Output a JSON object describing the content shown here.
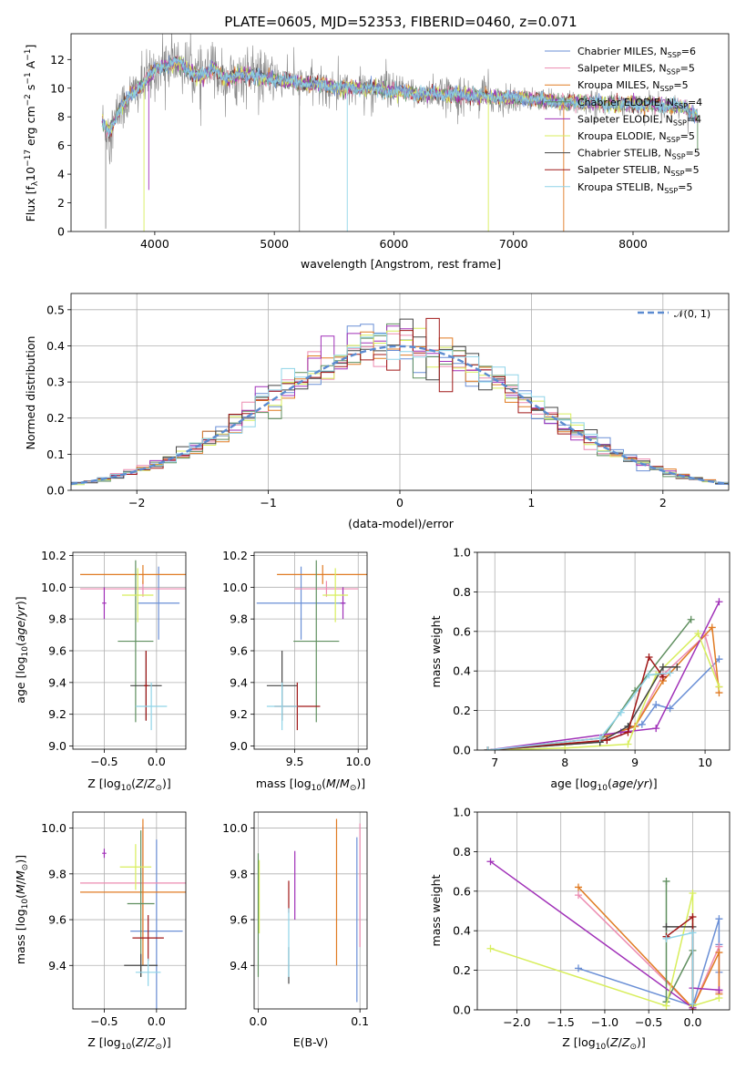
{
  "colors": {
    "Chabrier MILES": "#6a8fd6",
    "Salpeter MILES": "#ec8bb0",
    "Kroupa MILES": "#e07b23",
    "Chabrier ELODIE": "#5f8f5f",
    "Salpeter ELODIE": "#a030b8",
    "Kroupa ELODIE": "#d8ee5c",
    "Chabrier STELIB": "#444444",
    "Salpeter STELIB": "#a01818",
    "Kroupa STELIB": "#8fd4e8",
    "data": "#888888",
    "normal": "#5b8bd0",
    "grid": "#b0b0b0"
  },
  "chart_data": [
    {
      "id": "spectrum",
      "type": "line",
      "title": "PLATE=0605, MJD=52353, FIBERID=0460, z=0.071",
      "xlabel": "wavelength [Angstrom, rest frame]",
      "ylabel": "Flux [f_λ10^-17 erg cm^-2 s^-1 A^-1]",
      "xlim": [
        3300,
        8800
      ],
      "ylim": [
        0,
        13.8
      ],
      "xticks": [
        4000,
        5000,
        6000,
        7000,
        8000
      ],
      "yticks": [
        0,
        2,
        4,
        6,
        8,
        10,
        12
      ],
      "grid": false,
      "legend_position": "top-right",
      "legend": [
        {
          "name": "Chabrier MILES",
          "nssp": "6"
        },
        {
          "name": "Salpeter MILES",
          "nssp": "5"
        },
        {
          "name": "Kroupa MILES",
          "nssp": "5"
        },
        {
          "name": "Chabrier ELODIE",
          "nssp": "4"
        },
        {
          "name": "Salpeter ELODIE",
          "nssp": "4"
        },
        {
          "name": "Kroupa ELODIE",
          "nssp": "5"
        },
        {
          "name": "Chabrier STELIB",
          "nssp": "5"
        },
        {
          "name": "Salpeter STELIB",
          "nssp": "5"
        },
        {
          "name": "Kroupa STELIB",
          "nssp": "5"
        }
      ],
      "continuum_x": [
        3560,
        3620,
        3700,
        3800,
        3900,
        4000,
        4100,
        4200,
        4300,
        4400,
        4500,
        4600,
        4700,
        4800,
        4900,
        5000,
        5200,
        5400,
        5600,
        5800,
        6000,
        6200,
        6400,
        6600,
        6800,
        7000,
        7200,
        7400,
        7600,
        7800,
        8000,
        8200,
        8400,
        8540
      ],
      "continuum_y": [
        7.6,
        7.0,
        8.4,
        9.5,
        10.2,
        11.3,
        11.6,
        11.8,
        11.2,
        10.8,
        11.4,
        10.6,
        10.9,
        11.0,
        10.7,
        10.6,
        10.4,
        10.2,
        10.0,
        10.0,
        9.8,
        9.6,
        9.6,
        9.5,
        9.4,
        9.3,
        9.2,
        9.0,
        9.0,
        8.9,
        8.9,
        8.8,
        8.7,
        8.1
      ],
      "noise_amplitude": 1.3,
      "spikes": [
        {
          "x": 3910,
          "y": 0,
          "series": "Kroupa ELODIE"
        },
        {
          "x": 3950,
          "y": 2.9,
          "series": "Salpeter ELODIE"
        },
        {
          "x": 3590,
          "y": 0.2,
          "series": "data"
        },
        {
          "x": 5210,
          "y": 0,
          "series": "data"
        },
        {
          "x": 5610,
          "y": 0,
          "series": "Kroupa STELIB"
        },
        {
          "x": 6790,
          "y": 0,
          "series": "Kroupa ELODIE"
        },
        {
          "x": 7420,
          "y": 0,
          "series": "Kroupa MILES"
        },
        {
          "x": 8540,
          "y": 5.7,
          "series": "Chabrier ELODIE"
        }
      ]
    },
    {
      "id": "residuals",
      "type": "histogram",
      "xlabel": "(data-model)/error",
      "ylabel": "Normed distribution",
      "xlim": [
        -2.5,
        2.5
      ],
      "ylim": [
        0,
        0.545
      ],
      "xticks": [
        -2,
        -1,
        0,
        1,
        2
      ],
      "yticks": [
        0.0,
        0.1,
        0.2,
        0.3,
        0.4,
        0.5
      ],
      "grid": true,
      "legend_position": "top-right",
      "normal_label": "𝒩(0, 1)",
      "bin_width": 0.1
    },
    {
      "id": "age-vs-z",
      "type": "errorbar",
      "xlabel": "Z [log10(Z/Z⊙)]",
      "ylabel": "age  [log10(age/yr)]",
      "xlim": [
        -0.8,
        0.28
      ],
      "ylim": [
        8.98,
        10.22
      ],
      "xticks": [
        -0.5,
        0.0
      ],
      "yticks": [
        9.0,
        9.2,
        9.4,
        9.6,
        9.8,
        10.0,
        10.2
      ],
      "grid": true,
      "points": [
        {
          "series": "Chabrier MILES",
          "x": 0.02,
          "xerr": 0.2,
          "y": 9.9,
          "yerr": 0.23
        },
        {
          "series": "Salpeter MILES",
          "x": -0.13,
          "xerr": 0.6,
          "y": 9.99,
          "yerr": 0.05
        },
        {
          "series": "Kroupa MILES",
          "x": -0.13,
          "xerr": 0.6,
          "y": 10.08,
          "yerr": 0.06
        },
        {
          "series": "Chabrier ELODIE",
          "x": -0.2,
          "xerr": 0.17,
          "y": 9.66,
          "yerr": 0.51
        },
        {
          "series": "Salpeter ELODIE",
          "x": -0.5,
          "xerr": 0.02,
          "y": 9.9,
          "yerr": 0.1
        },
        {
          "series": "Kroupa ELODIE",
          "x": -0.18,
          "xerr": 0.15,
          "y": 9.95,
          "yerr": 0.17
        },
        {
          "series": "Chabrier STELIB",
          "x": -0.1,
          "xerr": 0.15,
          "y": 9.38,
          "yerr": 0.22
        },
        {
          "series": "Salpeter STELIB",
          "x": -0.1,
          "xerr": 0.02,
          "y": 9.38,
          "yerr": 0.22
        },
        {
          "series": "Kroupa STELIB",
          "x": -0.05,
          "xerr": 0.15,
          "y": 9.25,
          "yerr": 0.15
        }
      ]
    },
    {
      "id": "age-vs-mass",
      "type": "errorbar",
      "xlabel": "mass [log10(M/M⊙)]",
      "ylabel": "",
      "xlim": [
        9.18,
        10.07
      ],
      "ylim": [
        8.98,
        10.22
      ],
      "xticks": [
        9.5,
        10.0
      ],
      "yticks": [
        9.0,
        9.2,
        9.4,
        9.6,
        9.8,
        10.0,
        10.2
      ],
      "grid": true,
      "points": [
        {
          "series": "Chabrier MILES",
          "x": 9.55,
          "xerr": 0.35,
          "y": 9.9,
          "yerr": 0.23
        },
        {
          "series": "Salpeter MILES",
          "x": 9.75,
          "xerr": 0.25,
          "y": 9.99,
          "yerr": 0.05
        },
        {
          "series": "Kroupa MILES",
          "x": 9.72,
          "xerr": 0.36,
          "y": 10.08,
          "yerr": 0.06
        },
        {
          "series": "Chabrier ELODIE",
          "x": 9.67,
          "xerr": 0.18,
          "y": 9.66,
          "yerr": 0.51
        },
        {
          "series": "Salpeter ELODIE",
          "x": 9.88,
          "xerr": 0.02,
          "y": 9.9,
          "yerr": 0.1
        },
        {
          "series": "Kroupa ELODIE",
          "x": 9.82,
          "xerr": 0.1,
          "y": 9.95,
          "yerr": 0.17
        },
        {
          "series": "Chabrier STELIB",
          "x": 9.4,
          "xerr": 0.12,
          "y": 9.38,
          "yerr": 0.22
        },
        {
          "series": "Salpeter STELIB",
          "x": 9.52,
          "xerr": 0.18,
          "y": 9.25,
          "yerr": 0.15
        },
        {
          "series": "Kroupa STELIB",
          "x": 9.4,
          "xerr": 0.12,
          "y": 9.25,
          "yerr": 0.15
        }
      ]
    },
    {
      "id": "mass-vs-z",
      "type": "errorbar",
      "xlabel": "Z [log10(Z/Z⊙)]",
      "ylabel": "mass [log10(M/M⊙)]",
      "xlim": [
        -0.8,
        0.28
      ],
      "ylim": [
        9.21,
        10.07
      ],
      "xticks": [
        -0.5,
        0.0
      ],
      "yticks": [
        9.4,
        9.6,
        9.8,
        10.0
      ],
      "grid": true,
      "points": [
        {
          "series": "Chabrier MILES",
          "x": 0.0,
          "xerr": 0.25,
          "y": 9.55,
          "yerr": 0.4
        },
        {
          "series": "Salpeter MILES",
          "x": -0.13,
          "xerr": 0.6,
          "y": 9.76,
          "yerr": 0.25
        },
        {
          "series": "Kroupa MILES",
          "x": -0.13,
          "xerr": 0.6,
          "y": 9.72,
          "yerr": 0.32
        },
        {
          "series": "Chabrier ELODIE",
          "x": -0.15,
          "xerr": 0.13,
          "y": 9.67,
          "yerr": 0.32
        },
        {
          "series": "Salpeter ELODIE",
          "x": -0.5,
          "xerr": 0.02,
          "y": 9.89,
          "yerr": 0.02
        },
        {
          "series": "Kroupa ELODIE",
          "x": -0.2,
          "xerr": 0.15,
          "y": 9.83,
          "yerr": 0.1
        },
        {
          "series": "Chabrier STELIB",
          "x": -0.15,
          "xerr": 0.16,
          "y": 9.4,
          "yerr": 0.05
        },
        {
          "series": "Salpeter STELIB",
          "x": -0.08,
          "xerr": 0.15,
          "y": 9.52,
          "yerr": 0.1
        },
        {
          "series": "Kroupa STELIB",
          "x": -0.08,
          "xerr": 0.12,
          "y": 9.37,
          "yerr": 0.06
        }
      ]
    },
    {
      "id": "mass-vs-ebv",
      "type": "errorbar",
      "xlabel": "E(B-V)",
      "ylabel": "",
      "xlim": [
        -0.004,
        0.107
      ],
      "ylim": [
        9.21,
        10.07
      ],
      "xticks": [
        0.0,
        0.1
      ],
      "yticks": [
        9.4,
        9.6,
        9.8,
        10.0
      ],
      "grid": true,
      "points": [
        {
          "series": "Chabrier MILES",
          "x": 0.097,
          "xerr": 0,
          "y": 9.6,
          "yerr": 0.36
        },
        {
          "series": "Salpeter MILES",
          "x": 0.1,
          "xerr": 0,
          "y": 9.75,
          "yerr": 0.27
        },
        {
          "series": "Kroupa MILES",
          "x": 0.077,
          "xerr": 0,
          "y": 9.72,
          "yerr": 0.32
        },
        {
          "series": "Chabrier ELODIE",
          "x": 0.0,
          "xerr": 0,
          "y": 9.62,
          "yerr": 0.27
        },
        {
          "series": "Salpeter ELODIE",
          "x": 0.036,
          "xerr": 0,
          "y": 9.75,
          "yerr": 0.15
        },
        {
          "series": "Kroupa ELODIE",
          "x": 0.001,
          "xerr": 0,
          "y": 9.7,
          "yerr": 0.16
        },
        {
          "series": "Chabrier STELIB",
          "x": 0.03,
          "xerr": 0,
          "y": 9.4,
          "yerr": 0.08
        },
        {
          "series": "Salpeter STELIB",
          "x": 0.03,
          "xerr": 0,
          "y": 9.7,
          "yerr": 0.07
        },
        {
          "series": "Kroupa STELIB",
          "x": 0.03,
          "xerr": 0,
          "y": 9.5,
          "yerr": 0.15
        }
      ]
    },
    {
      "id": "weight-vs-age",
      "type": "line",
      "xlabel": "age  [log10(age/yr)]",
      "ylabel": "mass weight",
      "xlim": [
        6.75,
        10.35
      ],
      "ylim": [
        0,
        1.0
      ],
      "xticks": [
        7,
        8,
        9,
        10
      ],
      "yticks": [
        0.0,
        0.2,
        0.4,
        0.6,
        0.8,
        1.0
      ],
      "grid": true,
      "series": [
        {
          "name": "Chabrier MILES",
          "x": [
            6.9,
            8.5,
            9.1,
            9.3,
            9.5,
            10.2
          ],
          "y": [
            0.0,
            0.06,
            0.13,
            0.23,
            0.21,
            0.46
          ]
        },
        {
          "name": "Salpeter MILES",
          "x": [
            6.9,
            8.5,
            9.0,
            9.4,
            10.0,
            10.2
          ],
          "y": [
            0.0,
            0.06,
            0.12,
            0.38,
            0.58,
            0.32
          ]
        },
        {
          "name": "Kroupa MILES",
          "x": [
            6.9,
            8.5,
            9.0,
            9.4,
            10.1,
            10.2
          ],
          "y": [
            0.0,
            0.06,
            0.12,
            0.35,
            0.62,
            0.29
          ]
        },
        {
          "name": "Chabrier ELODIE",
          "x": [
            6.9,
            8.5,
            9.0,
            9.8
          ],
          "y": [
            0.0,
            0.04,
            0.3,
            0.66
          ]
        },
        {
          "name": "Salpeter ELODIE",
          "x": [
            6.9,
            8.8,
            9.3,
            10.2
          ],
          "y": [
            0.0,
            0.09,
            0.11,
            0.75
          ]
        },
        {
          "name": "Kroupa ELODIE",
          "x": [
            6.9,
            8.0,
            8.9,
            9.3,
            9.9,
            10.2
          ],
          "y": [
            0.0,
            0.01,
            0.03,
            0.38,
            0.59,
            0.32
          ]
        },
        {
          "name": "Chabrier STELIB",
          "x": [
            6.9,
            8.5,
            8.9,
            9.4,
            9.6
          ],
          "y": [
            0.0,
            0.04,
            0.12,
            0.42,
            0.42
          ]
        },
        {
          "name": "Salpeter STELIB",
          "x": [
            6.9,
            8.6,
            8.9,
            9.2,
            9.4
          ],
          "y": [
            0.0,
            0.05,
            0.09,
            0.47,
            0.37
          ]
        },
        {
          "name": "Kroupa STELIB",
          "x": [
            6.9,
            8.5,
            8.8,
            9.2,
            9.5
          ],
          "y": [
            0.0,
            0.06,
            0.19,
            0.38,
            0.39
          ]
        }
      ]
    },
    {
      "id": "weight-vs-z",
      "type": "line",
      "xlabel": "Z [log10(Z/Z⊙)]",
      "ylabel": "mass weight",
      "xlim": [
        -2.45,
        0.42
      ],
      "ylim": [
        0,
        1.0
      ],
      "xticks": [
        -2.0,
        -1.5,
        -1.0,
        -0.5,
        0.0
      ],
      "yticks": [
        0.0,
        0.2,
        0.4,
        0.6,
        0.8,
        1.0
      ],
      "grid": true,
      "series": [
        {
          "name": "Chabrier MILES",
          "x": [
            -1.3,
            0.0,
            0.3,
            0.3,
            0.3
          ],
          "y": [
            0.21,
            0.02,
            0.46,
            0.33,
            0.19
          ]
        },
        {
          "name": "Salpeter MILES",
          "x": [
            -1.3,
            0.0,
            0.3,
            0.3
          ],
          "y": [
            0.58,
            0.01,
            0.32,
            0.09
          ]
        },
        {
          "name": "Kroupa MILES",
          "x": [
            -1.3,
            0.0,
            0.3,
            0.3
          ],
          "y": [
            0.62,
            0.01,
            0.29,
            0.08
          ]
        },
        {
          "name": "Chabrier ELODIE",
          "x": [
            -0.3,
            -0.3,
            0.0,
            -0.3
          ],
          "y": [
            0.65,
            0.04,
            0.3,
            0.04
          ]
        },
        {
          "name": "Salpeter ELODIE",
          "x": [
            -2.3,
            0.0,
            0.0,
            0.3
          ],
          "y": [
            0.75,
            0.01,
            0.11,
            0.1
          ]
        },
        {
          "name": "Kroupa ELODIE",
          "x": [
            -2.3,
            -0.3,
            0.0,
            0.0,
            0.3
          ],
          "y": [
            0.31,
            0.02,
            0.59,
            0.02,
            0.06
          ]
        },
        {
          "name": "Chabrier STELIB",
          "x": [
            -0.3,
            0.0,
            0.0
          ],
          "y": [
            0.42,
            0.42,
            0.0
          ]
        },
        {
          "name": "Salpeter STELIB",
          "x": [
            -0.3,
            0.0,
            0.0
          ],
          "y": [
            0.37,
            0.47,
            0.0
          ]
        },
        {
          "name": "Kroupa STELIB",
          "x": [
            -0.3,
            0.0,
            0.0
          ],
          "y": [
            0.36,
            0.39,
            0.03
          ]
        }
      ]
    }
  ]
}
